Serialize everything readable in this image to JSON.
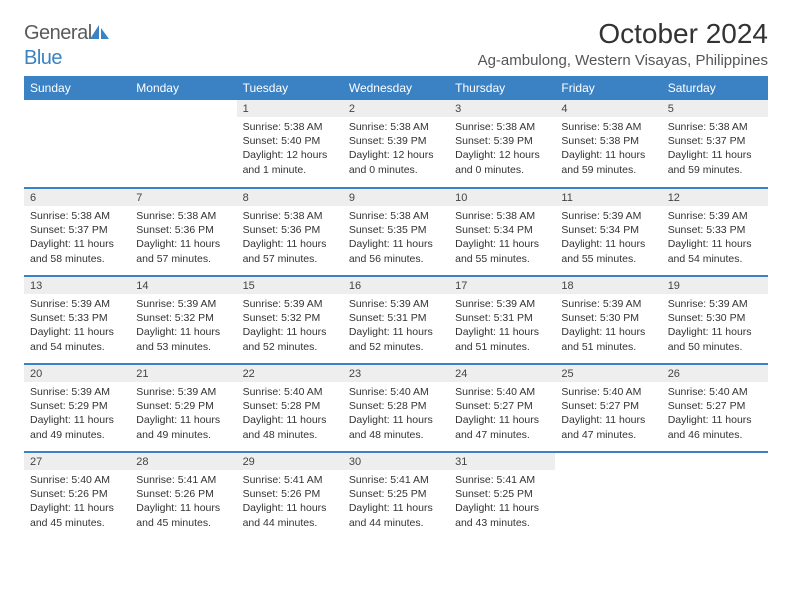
{
  "brand": {
    "text1": "General",
    "text2": "Blue"
  },
  "title": "October 2024",
  "location": "Ag-ambulong, Western Visayas, Philippines",
  "dayHeaders": [
    "Sunday",
    "Monday",
    "Tuesday",
    "Wednesday",
    "Thursday",
    "Friday",
    "Saturday"
  ],
  "colors": {
    "header_bg": "#3b82c4",
    "header_text": "#ffffff",
    "daynum_bg": "#eeeeee",
    "text": "#333333",
    "rule": "#3b82c4"
  },
  "weeks": [
    [
      null,
      null,
      {
        "n": "1",
        "sunrise": "Sunrise: 5:38 AM",
        "sunset": "Sunset: 5:40 PM",
        "daylight": "Daylight: 12 hours and 1 minute."
      },
      {
        "n": "2",
        "sunrise": "Sunrise: 5:38 AM",
        "sunset": "Sunset: 5:39 PM",
        "daylight": "Daylight: 12 hours and 0 minutes."
      },
      {
        "n": "3",
        "sunrise": "Sunrise: 5:38 AM",
        "sunset": "Sunset: 5:39 PM",
        "daylight": "Daylight: 12 hours and 0 minutes."
      },
      {
        "n": "4",
        "sunrise": "Sunrise: 5:38 AM",
        "sunset": "Sunset: 5:38 PM",
        "daylight": "Daylight: 11 hours and 59 minutes."
      },
      {
        "n": "5",
        "sunrise": "Sunrise: 5:38 AM",
        "sunset": "Sunset: 5:37 PM",
        "daylight": "Daylight: 11 hours and 59 minutes."
      }
    ],
    [
      {
        "n": "6",
        "sunrise": "Sunrise: 5:38 AM",
        "sunset": "Sunset: 5:37 PM",
        "daylight": "Daylight: 11 hours and 58 minutes."
      },
      {
        "n": "7",
        "sunrise": "Sunrise: 5:38 AM",
        "sunset": "Sunset: 5:36 PM",
        "daylight": "Daylight: 11 hours and 57 minutes."
      },
      {
        "n": "8",
        "sunrise": "Sunrise: 5:38 AM",
        "sunset": "Sunset: 5:36 PM",
        "daylight": "Daylight: 11 hours and 57 minutes."
      },
      {
        "n": "9",
        "sunrise": "Sunrise: 5:38 AM",
        "sunset": "Sunset: 5:35 PM",
        "daylight": "Daylight: 11 hours and 56 minutes."
      },
      {
        "n": "10",
        "sunrise": "Sunrise: 5:38 AM",
        "sunset": "Sunset: 5:34 PM",
        "daylight": "Daylight: 11 hours and 55 minutes."
      },
      {
        "n": "11",
        "sunrise": "Sunrise: 5:39 AM",
        "sunset": "Sunset: 5:34 PM",
        "daylight": "Daylight: 11 hours and 55 minutes."
      },
      {
        "n": "12",
        "sunrise": "Sunrise: 5:39 AM",
        "sunset": "Sunset: 5:33 PM",
        "daylight": "Daylight: 11 hours and 54 minutes."
      }
    ],
    [
      {
        "n": "13",
        "sunrise": "Sunrise: 5:39 AM",
        "sunset": "Sunset: 5:33 PM",
        "daylight": "Daylight: 11 hours and 54 minutes."
      },
      {
        "n": "14",
        "sunrise": "Sunrise: 5:39 AM",
        "sunset": "Sunset: 5:32 PM",
        "daylight": "Daylight: 11 hours and 53 minutes."
      },
      {
        "n": "15",
        "sunrise": "Sunrise: 5:39 AM",
        "sunset": "Sunset: 5:32 PM",
        "daylight": "Daylight: 11 hours and 52 minutes."
      },
      {
        "n": "16",
        "sunrise": "Sunrise: 5:39 AM",
        "sunset": "Sunset: 5:31 PM",
        "daylight": "Daylight: 11 hours and 52 minutes."
      },
      {
        "n": "17",
        "sunrise": "Sunrise: 5:39 AM",
        "sunset": "Sunset: 5:31 PM",
        "daylight": "Daylight: 11 hours and 51 minutes."
      },
      {
        "n": "18",
        "sunrise": "Sunrise: 5:39 AM",
        "sunset": "Sunset: 5:30 PM",
        "daylight": "Daylight: 11 hours and 51 minutes."
      },
      {
        "n": "19",
        "sunrise": "Sunrise: 5:39 AM",
        "sunset": "Sunset: 5:30 PM",
        "daylight": "Daylight: 11 hours and 50 minutes."
      }
    ],
    [
      {
        "n": "20",
        "sunrise": "Sunrise: 5:39 AM",
        "sunset": "Sunset: 5:29 PM",
        "daylight": "Daylight: 11 hours and 49 minutes."
      },
      {
        "n": "21",
        "sunrise": "Sunrise: 5:39 AM",
        "sunset": "Sunset: 5:29 PM",
        "daylight": "Daylight: 11 hours and 49 minutes."
      },
      {
        "n": "22",
        "sunrise": "Sunrise: 5:40 AM",
        "sunset": "Sunset: 5:28 PM",
        "daylight": "Daylight: 11 hours and 48 minutes."
      },
      {
        "n": "23",
        "sunrise": "Sunrise: 5:40 AM",
        "sunset": "Sunset: 5:28 PM",
        "daylight": "Daylight: 11 hours and 48 minutes."
      },
      {
        "n": "24",
        "sunrise": "Sunrise: 5:40 AM",
        "sunset": "Sunset: 5:27 PM",
        "daylight": "Daylight: 11 hours and 47 minutes."
      },
      {
        "n": "25",
        "sunrise": "Sunrise: 5:40 AM",
        "sunset": "Sunset: 5:27 PM",
        "daylight": "Daylight: 11 hours and 47 minutes."
      },
      {
        "n": "26",
        "sunrise": "Sunrise: 5:40 AM",
        "sunset": "Sunset: 5:27 PM",
        "daylight": "Daylight: 11 hours and 46 minutes."
      }
    ],
    [
      {
        "n": "27",
        "sunrise": "Sunrise: 5:40 AM",
        "sunset": "Sunset: 5:26 PM",
        "daylight": "Daylight: 11 hours and 45 minutes."
      },
      {
        "n": "28",
        "sunrise": "Sunrise: 5:41 AM",
        "sunset": "Sunset: 5:26 PM",
        "daylight": "Daylight: 11 hours and 45 minutes."
      },
      {
        "n": "29",
        "sunrise": "Sunrise: 5:41 AM",
        "sunset": "Sunset: 5:26 PM",
        "daylight": "Daylight: 11 hours and 44 minutes."
      },
      {
        "n": "30",
        "sunrise": "Sunrise: 5:41 AM",
        "sunset": "Sunset: 5:25 PM",
        "daylight": "Daylight: 11 hours and 44 minutes."
      },
      {
        "n": "31",
        "sunrise": "Sunrise: 5:41 AM",
        "sunset": "Sunset: 5:25 PM",
        "daylight": "Daylight: 11 hours and 43 minutes."
      },
      null,
      null
    ]
  ]
}
